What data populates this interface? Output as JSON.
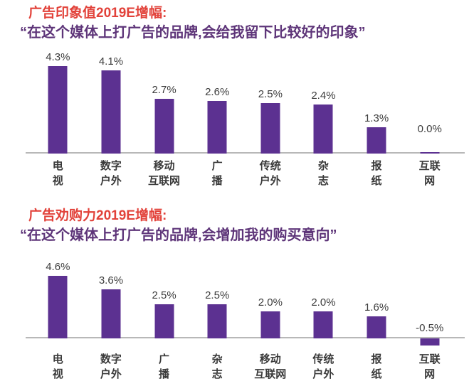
{
  "page": {
    "background": "#ffffff"
  },
  "colors": {
    "bar": "#5c3191",
    "title": "#e2423a",
    "subtitle": "#5e3579",
    "value_label": "#3d3d3d",
    "category_label": "#3a3a3a",
    "axis_line": "#b8b8b8"
  },
  "chart_data": [
    {
      "type": "bar",
      "title": "广告印象值2019E增幅:",
      "subtitle": "“在这个媒体上打广告的品牌,会给我留下比较好的印象”",
      "unit": "%",
      "categories": [
        "电视",
        "数字户外",
        "移动互联网",
        "广播",
        "传统户外",
        "杂志",
        "报纸",
        "互联网"
      ],
      "category_lines": [
        [
          "电",
          "视"
        ],
        [
          "数字",
          "户外"
        ],
        [
          "移动",
          "互联网"
        ],
        [
          "广",
          "播"
        ],
        [
          "传统",
          "户外"
        ],
        [
          "杂",
          "志"
        ],
        [
          "报",
          "纸"
        ],
        [
          "互联",
          "网"
        ]
      ],
      "values": [
        4.3,
        4.1,
        2.7,
        2.6,
        2.5,
        2.4,
        1.3,
        0.0
      ],
      "value_labels": [
        "4.3%",
        "4.1%",
        "2.7%",
        "2.6%",
        "2.5%",
        "2.4%",
        "1.3%",
        "0.0%"
      ],
      "ylim": [
        0,
        5
      ],
      "grid": false,
      "y_axis_visible": false,
      "data_label_position": "outside-end"
    },
    {
      "type": "bar",
      "title": "广告劝购力2019E增幅:",
      "subtitle": "“在这个媒体上打广告的品牌,会增加我的购买意向”",
      "unit": "%",
      "categories": [
        "电视",
        "数字户外",
        "广播",
        "杂志",
        "移动互联网",
        "传统户外",
        "报纸",
        "互联网"
      ],
      "category_lines": [
        [
          "电",
          "视"
        ],
        [
          "数字",
          "户外"
        ],
        [
          "广",
          "播"
        ],
        [
          "杂",
          "志"
        ],
        [
          "移动",
          "互联网"
        ],
        [
          "传统",
          "户外"
        ],
        [
          "报",
          "纸"
        ],
        [
          "互联",
          "网"
        ]
      ],
      "values": [
        4.6,
        3.6,
        2.5,
        2.5,
        2.0,
        2.0,
        1.6,
        -0.5
      ],
      "value_labels": [
        "4.6%",
        "3.6%",
        "2.5%",
        "2.5%",
        "2.0%",
        "2.0%",
        "1.6%",
        "-0.5%"
      ],
      "ylim": [
        -1,
        5
      ],
      "grid": false,
      "y_axis_visible": false,
      "data_label_position": "outside-end"
    }
  ]
}
